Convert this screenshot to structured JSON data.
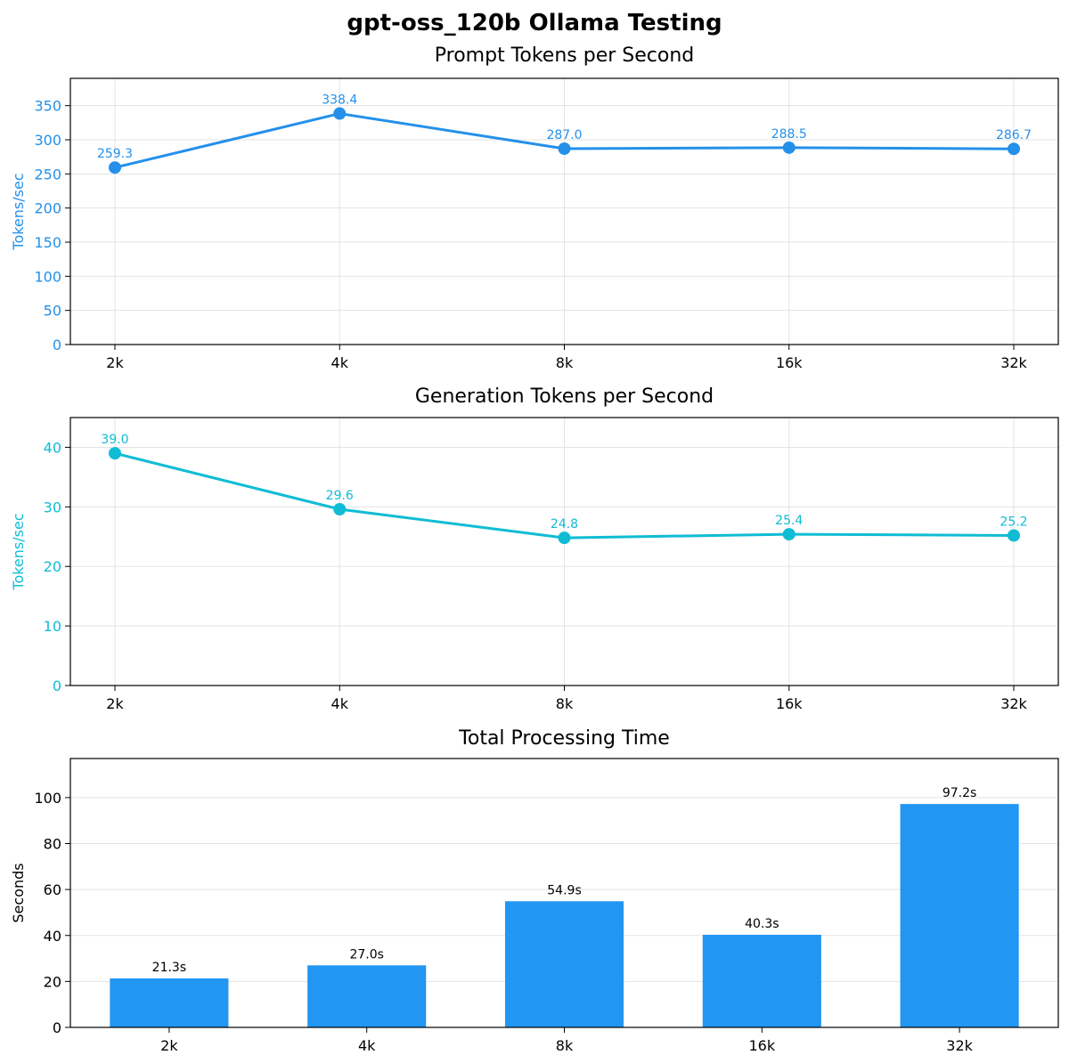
{
  "figure_title": "gpt-oss_120b Ollama Testing",
  "chart_data": [
    {
      "type": "line",
      "title": "Prompt Tokens per Second",
      "categories": [
        "2k",
        "4k",
        "8k",
        "16k",
        "32k"
      ],
      "values": [
        259.3,
        338.4,
        287.0,
        288.5,
        286.7
      ],
      "labels": [
        "259.3",
        "338.4",
        "287.0",
        "288.5",
        "286.7"
      ],
      "ylabel": "Tokens/sec",
      "ylim": [
        0,
        390
      ],
      "yticks": [
        0,
        50,
        100,
        150,
        200,
        250,
        300,
        350
      ],
      "color": "#2490ea",
      "grid": true
    },
    {
      "type": "line",
      "title": "Generation Tokens per Second",
      "categories": [
        "2k",
        "4k",
        "8k",
        "16k",
        "32k"
      ],
      "values": [
        39.0,
        29.6,
        24.8,
        25.4,
        25.2
      ],
      "labels": [
        "39.0",
        "29.6",
        "24.8",
        "25.4",
        "25.2"
      ],
      "ylabel": "Tokens/sec",
      "ylim": [
        0,
        45
      ],
      "yticks": [
        0,
        10,
        20,
        30,
        40
      ],
      "color": "#0fbcd4",
      "grid": true
    },
    {
      "type": "bar",
      "title": "Total Processing Time",
      "categories": [
        "2k",
        "4k",
        "8k",
        "16k",
        "32k"
      ],
      "values": [
        21.3,
        27.0,
        54.9,
        40.3,
        97.2
      ],
      "labels": [
        "21.3s",
        "27.0s",
        "54.9s",
        "40.3s",
        "97.2s"
      ],
      "ylabel": "Seconds",
      "ylim": [
        0,
        117
      ],
      "yticks": [
        0,
        20,
        40,
        60,
        80,
        100
      ],
      "color": "#2196f3",
      "grid": true
    }
  ]
}
